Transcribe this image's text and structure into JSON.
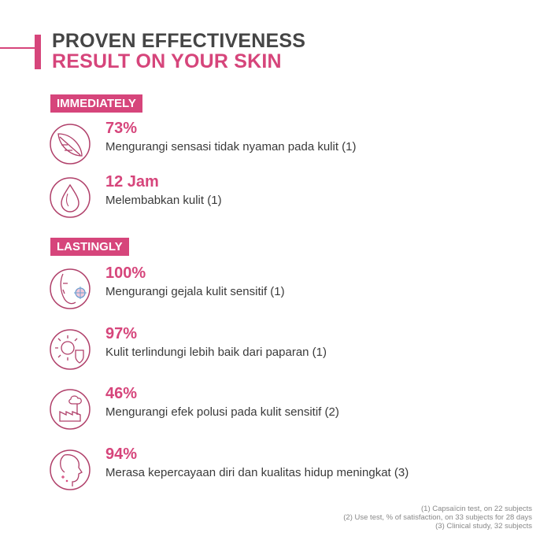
{
  "header": {
    "title_line1": "PROVEN EFFECTIVENESS",
    "title_line2": "RESULT ON YOUR SKIN"
  },
  "colors": {
    "accent": "#d6457b",
    "heading": "#454545",
    "text": "#3a3a3a"
  },
  "sections": [
    {
      "label": "IMMEDIATELY",
      "items": [
        {
          "icon": "feather-icon",
          "value": "73%",
          "description": "Mengurangi sensasi tidak nyaman pada kulit (1)"
        },
        {
          "icon": "water-drop-icon",
          "value": "12 Jam",
          "description": "Melembabkan kulit (1)"
        }
      ]
    },
    {
      "label": "LASTINGLY",
      "items": [
        {
          "icon": "face-target-icon",
          "value": "100%",
          "description": "Mengurangi gejala kulit sensitif (1)"
        },
        {
          "icon": "sun-shield-icon",
          "value": "97%",
          "description": "Kulit terlindungi lebih baik dari paparan (1)"
        },
        {
          "icon": "factory-pollution-icon",
          "value": "46%",
          "description": "Mengurangi efek polusi pada kulit sensitif (2)"
        },
        {
          "icon": "face-profile-sparkle-icon",
          "value": "94%",
          "description": "Merasa kepercayaan diri dan kualitas hidup meningkat (3)"
        }
      ]
    }
  ],
  "footnotes": [
    "(1) Capsaïcin test, on 22 subjects",
    "(2) Use test, % of satisfaction, on 33 subjects for 28 days",
    "(3) Clinical study, 32 subjects"
  ]
}
